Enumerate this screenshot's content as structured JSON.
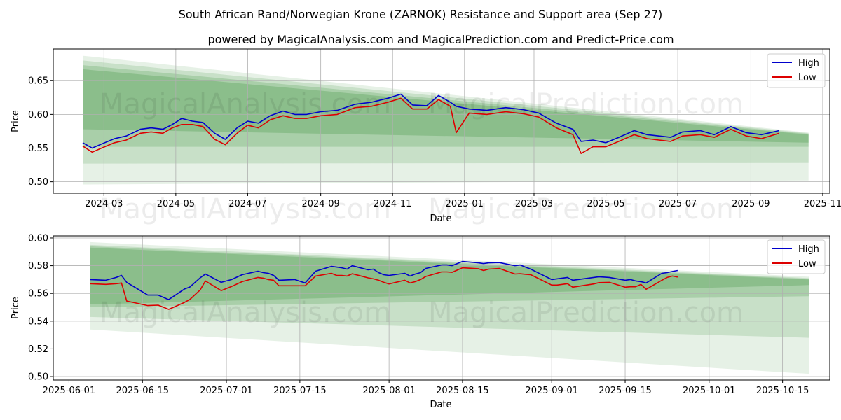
{
  "title": "South African Rand/Norwegian Krone (ZARNOK) Resistance and Support area (Sep 27)",
  "subtitle": "powered by MagicalAnalysis.com and MagicalPrediction.com and Predict-Price.com",
  "watermarks": [
    "MagicalAnalysis.com",
    "MagicalPrediction.com"
  ],
  "colors": {
    "high": "#0000cc",
    "low": "#dd0000",
    "band": "#2e8b2e",
    "grid": "#b0b0b0"
  },
  "chart_data": [
    {
      "type": "line",
      "name": "full-range",
      "xlabel": "Date",
      "ylabel": "Price",
      "xlim": [
        "2024-01-18",
        "2025-11-07"
      ],
      "ylim": [
        0.483,
        0.697
      ],
      "grid": true,
      "legend_position": "top-right",
      "xticks": [
        {
          "date": "2024-03-01",
          "label": "2024-03"
        },
        {
          "date": "2024-05-01",
          "label": "2024-05"
        },
        {
          "date": "2024-07-01",
          "label": "2024-07"
        },
        {
          "date": "2024-09-01",
          "label": "2024-09"
        },
        {
          "date": "2024-11-01",
          "label": "2024-11"
        },
        {
          "date": "2025-01-01",
          "label": "2025-01"
        },
        {
          "date": "2025-03-01",
          "label": "2025-03"
        },
        {
          "date": "2025-05-01",
          "label": "2025-05"
        },
        {
          "date": "2025-07-01",
          "label": "2025-07"
        },
        {
          "date": "2025-09-01",
          "label": "2025-09"
        },
        {
          "date": "2025-11-01",
          "label": "2025-11"
        }
      ],
      "yticks": [
        {
          "value": 0.5,
          "label": "0.50"
        },
        {
          "value": 0.55,
          "label": "0.55"
        },
        {
          "value": 0.6,
          "label": "0.60"
        },
        {
          "value": 0.65,
          "label": "0.65"
        }
      ],
      "bands": [
        {
          "start": "2024-02-12",
          "end": "2025-10-20",
          "top": [
            0.687,
            0.573
          ],
          "bottom": [
            0.496,
            0.502
          ],
          "opacity": 0.12
        },
        {
          "start": "2024-02-12",
          "end": "2025-10-20",
          "top": [
            0.68,
            0.572
          ],
          "bottom": [
            0.527,
            0.528
          ],
          "opacity": 0.16
        },
        {
          "start": "2024-02-12",
          "end": "2025-10-20",
          "top": [
            0.673,
            0.571
          ],
          "bottom": [
            0.552,
            0.552
          ],
          "opacity": 0.2
        },
        {
          "start": "2024-02-12",
          "end": "2025-10-20",
          "top": [
            0.667,
            0.57
          ],
          "bottom": [
            0.578,
            0.558
          ],
          "opacity": 0.24
        }
      ],
      "series": [
        {
          "name": "High",
          "color": "#0000cc",
          "x": [
            "2024-02-12",
            "2024-02-20",
            "2024-02-28",
            "2024-03-10",
            "2024-03-20",
            "2024-04-01",
            "2024-04-10",
            "2024-04-20",
            "2024-04-28",
            "2024-05-06",
            "2024-05-15",
            "2024-05-24",
            "2024-06-03",
            "2024-06-12",
            "2024-06-22",
            "2024-07-01",
            "2024-07-10",
            "2024-07-20",
            "2024-07-31",
            "2024-08-10",
            "2024-08-20",
            "2024-09-01",
            "2024-09-15",
            "2024-09-30",
            "2024-10-14",
            "2024-10-28",
            "2024-11-08",
            "2024-11-18",
            "2024-11-30",
            "2024-12-10",
            "2024-12-20",
            "2024-12-25",
            "2025-01-05",
            "2025-01-20",
            "2025-02-05",
            "2025-02-20",
            "2025-03-05",
            "2025-03-20",
            "2025-04-03",
            "2025-04-10",
            "2025-04-20",
            "2025-05-01",
            "2025-05-12",
            "2025-05-25",
            "2025-06-05",
            "2025-06-15",
            "2025-06-25",
            "2025-07-05",
            "2025-07-20",
            "2025-08-01",
            "2025-08-15",
            "2025-08-28",
            "2025-09-10",
            "2025-09-25"
          ],
          "y": [
            0.558,
            0.55,
            0.556,
            0.564,
            0.568,
            0.578,
            0.58,
            0.578,
            0.585,
            0.594,
            0.59,
            0.588,
            0.572,
            0.563,
            0.58,
            0.59,
            0.587,
            0.598,
            0.605,
            0.6,
            0.6,
            0.604,
            0.606,
            0.615,
            0.618,
            0.624,
            0.63,
            0.614,
            0.613,
            0.628,
            0.618,
            0.612,
            0.608,
            0.606,
            0.61,
            0.607,
            0.602,
            0.587,
            0.578,
            0.56,
            0.562,
            0.558,
            0.566,
            0.576,
            0.57,
            0.568,
            0.566,
            0.574,
            0.576,
            0.57,
            0.582,
            0.573,
            0.57,
            0.576
          ]
        },
        {
          "name": "Low",
          "color": "#dd0000",
          "x": [
            "2024-02-12",
            "2024-02-20",
            "2024-02-28",
            "2024-03-10",
            "2024-03-20",
            "2024-04-01",
            "2024-04-10",
            "2024-04-20",
            "2024-04-28",
            "2024-05-06",
            "2024-05-15",
            "2024-05-24",
            "2024-06-03",
            "2024-06-12",
            "2024-06-22",
            "2024-07-01",
            "2024-07-10",
            "2024-07-20",
            "2024-07-31",
            "2024-08-10",
            "2024-08-20",
            "2024-09-01",
            "2024-09-15",
            "2024-09-30",
            "2024-10-14",
            "2024-10-28",
            "2024-11-08",
            "2024-11-18",
            "2024-11-30",
            "2024-12-10",
            "2024-12-20",
            "2024-12-25",
            "2025-01-05",
            "2025-01-20",
            "2025-02-05",
            "2025-02-20",
            "2025-03-05",
            "2025-03-20",
            "2025-04-03",
            "2025-04-10",
            "2025-04-20",
            "2025-05-01",
            "2025-05-12",
            "2025-05-25",
            "2025-06-05",
            "2025-06-15",
            "2025-06-25",
            "2025-07-05",
            "2025-07-20",
            "2025-08-01",
            "2025-08-15",
            "2025-08-28",
            "2025-09-10",
            "2025-09-25"
          ],
          "y": [
            0.553,
            0.544,
            0.55,
            0.558,
            0.562,
            0.572,
            0.574,
            0.572,
            0.58,
            0.585,
            0.585,
            0.582,
            0.563,
            0.555,
            0.572,
            0.584,
            0.58,
            0.592,
            0.598,
            0.594,
            0.594,
            0.598,
            0.6,
            0.61,
            0.612,
            0.618,
            0.624,
            0.608,
            0.608,
            0.622,
            0.612,
            0.573,
            0.602,
            0.6,
            0.604,
            0.601,
            0.596,
            0.58,
            0.57,
            0.542,
            0.552,
            0.552,
            0.56,
            0.57,
            0.564,
            0.562,
            0.56,
            0.568,
            0.57,
            0.566,
            0.578,
            0.568,
            0.564,
            0.572
          ]
        }
      ]
    },
    {
      "type": "line",
      "name": "recent-range",
      "xlabel": "Date",
      "ylabel": "Price",
      "xlim": [
        "2025-05-29",
        "2025-10-24"
      ],
      "ylim": [
        0.4975,
        0.6015
      ],
      "grid": true,
      "legend_position": "top-right",
      "xticks": [
        {
          "date": "2025-06-01",
          "label": "2025-06-01"
        },
        {
          "date": "2025-06-15",
          "label": "2025-06-15"
        },
        {
          "date": "2025-07-01",
          "label": "2025-07-01"
        },
        {
          "date": "2025-07-15",
          "label": "2025-07-15"
        },
        {
          "date": "2025-08-01",
          "label": "2025-08-01"
        },
        {
          "date": "2025-08-15",
          "label": "2025-08-15"
        },
        {
          "date": "2025-09-01",
          "label": "2025-09-01"
        },
        {
          "date": "2025-09-15",
          "label": "2025-09-15"
        },
        {
          "date": "2025-10-01",
          "label": "2025-10-01"
        },
        {
          "date": "2025-10-15",
          "label": "2025-10-15"
        }
      ],
      "yticks": [
        {
          "value": 0.5,
          "label": "0.50"
        },
        {
          "value": 0.52,
          "label": "0.52"
        },
        {
          "value": 0.54,
          "label": "0.54"
        },
        {
          "value": 0.56,
          "label": "0.56"
        },
        {
          "value": 0.58,
          "label": "0.58"
        },
        {
          "value": 0.6,
          "label": "0.60"
        }
      ],
      "bands": [
        {
          "start": "2025-06-05",
          "end": "2025-10-20",
          "top": [
            0.597,
            0.572
          ],
          "bottom": [
            0.534,
            0.502
          ],
          "opacity": 0.12
        },
        {
          "start": "2025-06-05",
          "end": "2025-10-20",
          "top": [
            0.595,
            0.571
          ],
          "bottom": [
            0.543,
            0.528
          ],
          "opacity": 0.16
        },
        {
          "start": "2025-06-05",
          "end": "2025-10-20",
          "top": [
            0.594,
            0.5705
          ],
          "bottom": [
            0.55,
            0.558
          ],
          "opacity": 0.2
        },
        {
          "start": "2025-06-05",
          "end": "2025-10-20",
          "top": [
            0.593,
            0.57
          ],
          "bottom": [
            0.552,
            0.566
          ],
          "opacity": 0.24
        }
      ],
      "series": [
        {
          "name": "High",
          "color": "#0000cc",
          "x": [
            "2025-06-05",
            "2025-06-08",
            "2025-06-10",
            "2025-06-11",
            "2025-06-12",
            "2025-06-16",
            "2025-06-18",
            "2025-06-20",
            "2025-06-23",
            "2025-06-24",
            "2025-06-26",
            "2025-06-27",
            "2025-06-30",
            "2025-07-02",
            "2025-07-04",
            "2025-07-07",
            "2025-07-08",
            "2025-07-09",
            "2025-07-10",
            "2025-07-11",
            "2025-07-14",
            "2025-07-16",
            "2025-07-18",
            "2025-07-21",
            "2025-07-22",
            "2025-07-23",
            "2025-07-24",
            "2025-07-25",
            "2025-07-28",
            "2025-07-29",
            "2025-07-30",
            "2025-07-31",
            "2025-08-01",
            "2025-08-04",
            "2025-08-05",
            "2025-08-06",
            "2025-08-07",
            "2025-08-08",
            "2025-08-11",
            "2025-08-12",
            "2025-08-13",
            "2025-08-15",
            "2025-08-18",
            "2025-08-19",
            "2025-08-20",
            "2025-08-22",
            "2025-08-25",
            "2025-08-26",
            "2025-08-27",
            "2025-08-28",
            "2025-09-01",
            "2025-09-02",
            "2025-09-03",
            "2025-09-04",
            "2025-09-05",
            "2025-09-09",
            "2025-09-10",
            "2025-09-12",
            "2025-09-15",
            "2025-09-16",
            "2025-09-17",
            "2025-09-18",
            "2025-09-19",
            "2025-09-22",
            "2025-09-23",
            "2025-09-24",
            "2025-09-25"
          ],
          "y": [
            0.57,
            0.5695,
            0.5715,
            0.573,
            0.568,
            0.5588,
            0.5588,
            0.5555,
            0.5632,
            0.5645,
            0.5712,
            0.574,
            0.568,
            0.57,
            0.5735,
            0.576,
            0.575,
            0.5745,
            0.573,
            0.5695,
            0.57,
            0.5675,
            0.576,
            0.5795,
            0.579,
            0.5785,
            0.5775,
            0.58,
            0.577,
            0.5775,
            0.575,
            0.5735,
            0.573,
            0.5745,
            0.5725,
            0.574,
            0.575,
            0.578,
            0.5805,
            0.5805,
            0.58,
            0.583,
            0.582,
            0.5815,
            0.582,
            0.5822,
            0.58,
            0.5805,
            0.579,
            0.5775,
            0.57,
            0.5705,
            0.571,
            0.5715,
            0.5695,
            0.5715,
            0.572,
            0.5715,
            0.5695,
            0.57,
            0.569,
            0.5685,
            0.5675,
            0.5745,
            0.575,
            0.5758,
            0.5765
          ]
        },
        {
          "name": "Low",
          "color": "#dd0000",
          "x": [
            "2025-06-05",
            "2025-06-08",
            "2025-06-10",
            "2025-06-11",
            "2025-06-12",
            "2025-06-16",
            "2025-06-18",
            "2025-06-20",
            "2025-06-23",
            "2025-06-24",
            "2025-06-26",
            "2025-06-27",
            "2025-06-30",
            "2025-07-02",
            "2025-07-04",
            "2025-07-07",
            "2025-07-08",
            "2025-07-09",
            "2025-07-10",
            "2025-07-11",
            "2025-07-14",
            "2025-07-16",
            "2025-07-18",
            "2025-07-21",
            "2025-07-22",
            "2025-07-23",
            "2025-07-24",
            "2025-07-25",
            "2025-07-28",
            "2025-07-29",
            "2025-07-30",
            "2025-07-31",
            "2025-08-01",
            "2025-08-04",
            "2025-08-05",
            "2025-08-06",
            "2025-08-07",
            "2025-08-08",
            "2025-08-11",
            "2025-08-12",
            "2025-08-13",
            "2025-08-15",
            "2025-08-18",
            "2025-08-19",
            "2025-08-20",
            "2025-08-22",
            "2025-08-25",
            "2025-08-26",
            "2025-08-27",
            "2025-08-28",
            "2025-09-01",
            "2025-09-02",
            "2025-09-03",
            "2025-09-04",
            "2025-09-05",
            "2025-09-09",
            "2025-09-10",
            "2025-09-12",
            "2025-09-15",
            "2025-09-16",
            "2025-09-17",
            "2025-09-18",
            "2025-09-19",
            "2025-09-22",
            "2025-09-23",
            "2025-09-24",
            "2025-09-25"
          ],
          "y": [
            0.567,
            0.5665,
            0.567,
            0.5675,
            0.5545,
            0.5512,
            0.5515,
            0.5485,
            0.5535,
            0.5555,
            0.5625,
            0.569,
            0.562,
            0.565,
            0.5685,
            0.5715,
            0.571,
            0.57,
            0.5695,
            0.5655,
            0.5655,
            0.5655,
            0.5725,
            0.5745,
            0.573,
            0.573,
            0.5725,
            0.5742,
            0.5712,
            0.5705,
            0.5695,
            0.568,
            0.5668,
            0.5695,
            0.5675,
            0.5685,
            0.57,
            0.5722,
            0.5755,
            0.5755,
            0.5752,
            0.5785,
            0.5778,
            0.5765,
            0.5775,
            0.578,
            0.574,
            0.5742,
            0.5738,
            0.5735,
            0.566,
            0.566,
            0.5665,
            0.567,
            0.5645,
            0.5668,
            0.5678,
            0.568,
            0.5645,
            0.5648,
            0.5648,
            0.5665,
            0.563,
            0.5695,
            0.5715,
            0.5725,
            0.5718
          ]
        }
      ]
    }
  ]
}
